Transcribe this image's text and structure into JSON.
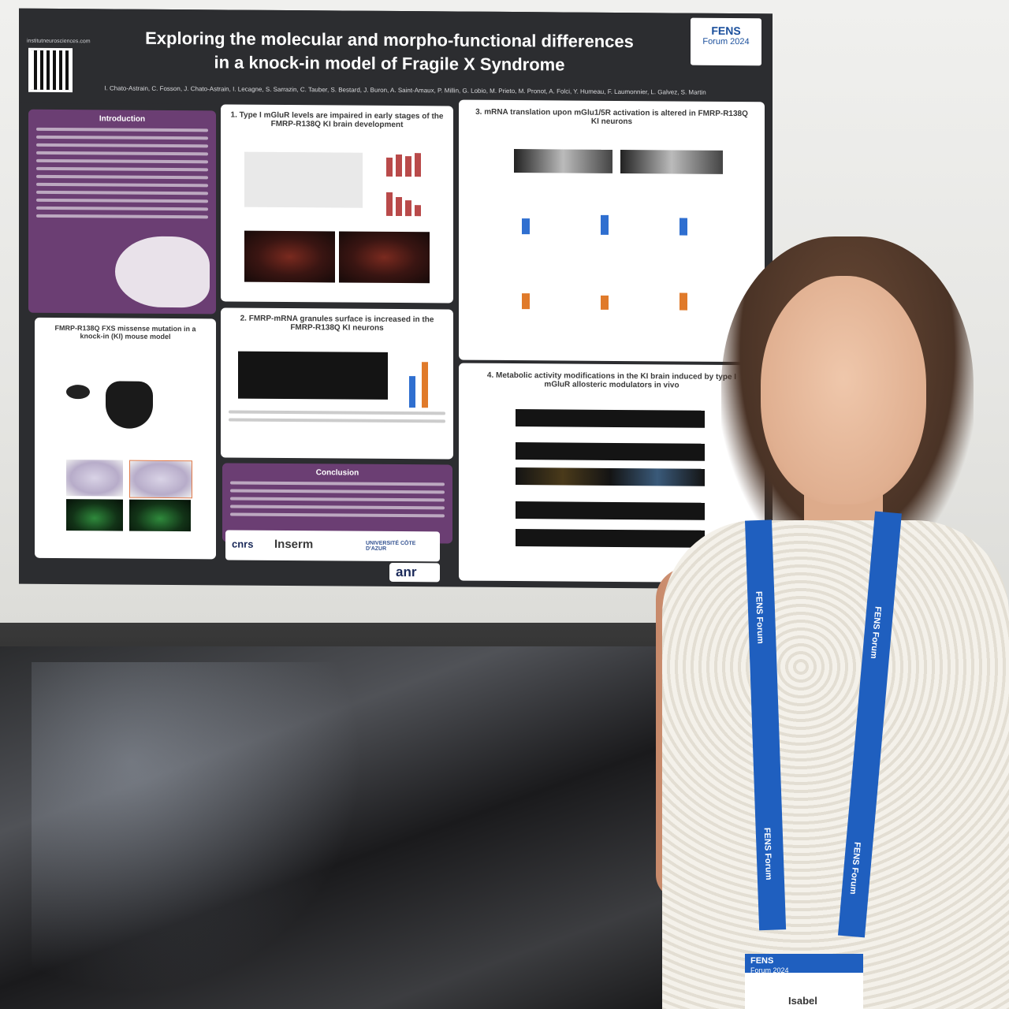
{
  "poster": {
    "qr_url": "institutneurosciences.com",
    "title_line1": "Exploring the molecular and morpho-functional differences",
    "title_line2": "in a knock-in model of Fragile X Syndrome",
    "authors": "I. Chato-Astrain, C. Fosson, J. Chato-Astrain, I. Lecagne, S. Sarrazin, C. Tauber, S. Bestard, J. Buron, A. Saint-Amaux, P. Millin, G. Lobio, M. Prieto, M. Pronot, A. Folci, Y. Humeau, F. Laumonnier, L. Galvez, S. Martin",
    "fens_logo_line1": "FENS",
    "fens_logo_line2": "Forum 2024",
    "sections": {
      "introduction": "Introduction",
      "s1": "1. Type I mGluR levels are impaired in early stages of the FMRP-R138Q KI brain development",
      "s2": "2. FMRP-mRNA granules surface is increased in the FMRP-R138Q KI neurons",
      "s3": "3. mRNA translation upon mGlu1/5R activation is altered in FMRP-R138Q KI neurons",
      "s4": "4. Metabolic activity modifications in the KI brain induced by type I mGluR allosteric modulators in vivo",
      "model": "FMRP-R138Q FXS missense mutation in a knock-in (KI) mouse model",
      "conclusion": "Conclusion"
    },
    "logos": {
      "cnrs": "cnrs",
      "inserm": "Inserm",
      "univ": "UNIVERSITÉ CÔTE D'AZUR",
      "anr": "anr"
    }
  },
  "lanyard": {
    "text1": "FENS Forum",
    "text2": "FENS Forum"
  },
  "badge": {
    "title": "FENS",
    "subtitle": "Forum 2024",
    "name": "Isabel"
  },
  "colors": {
    "poster_bg": "#2c2d30",
    "purple_panel": "#6b3e73",
    "lanyard_blue": "#1f5fbf",
    "fens_blue": "#1a4f9c"
  }
}
